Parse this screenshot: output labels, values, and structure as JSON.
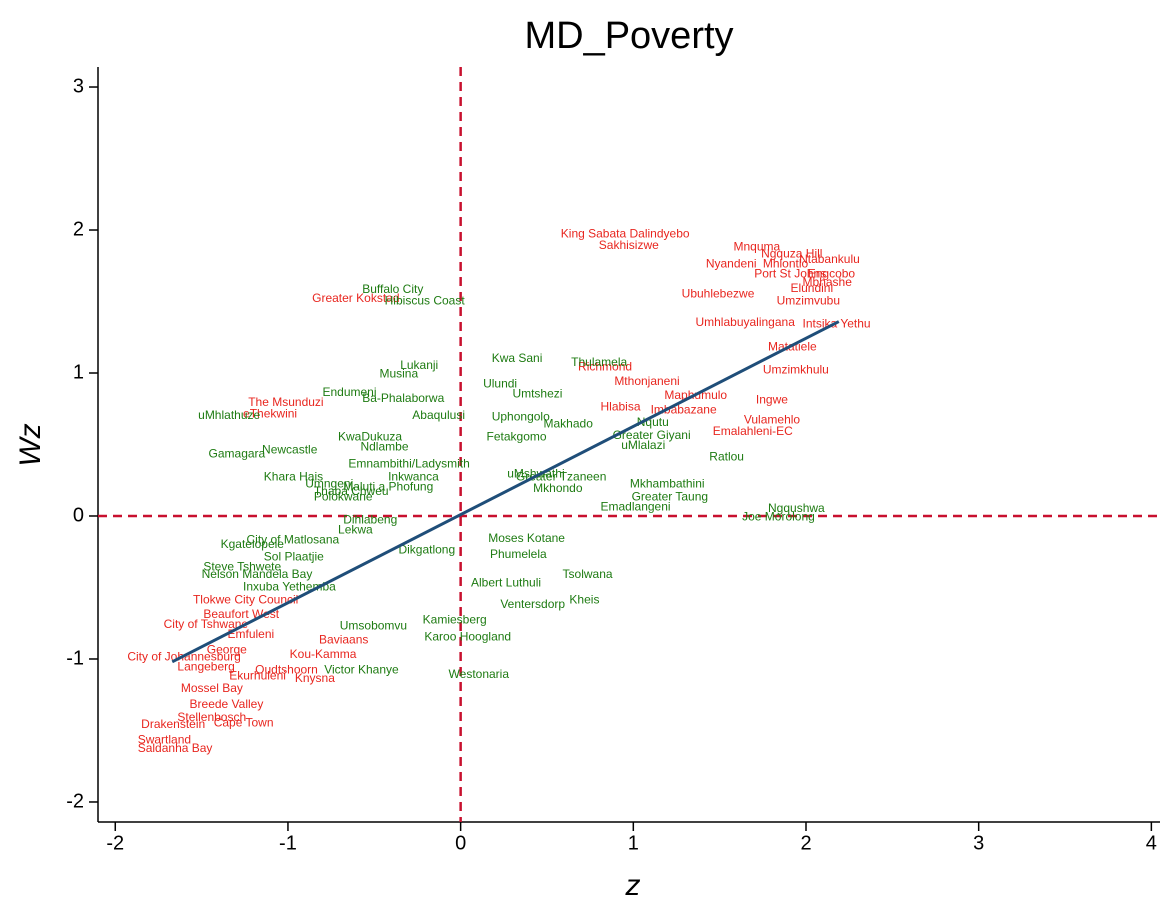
{
  "chart_data": {
    "type": "scatter",
    "title": "MD_Poverty",
    "x_label": "z",
    "y_label": "Wz",
    "xlim": [
      -2.1,
      4.05
    ],
    "ylim": [
      -2.14,
      3.14
    ],
    "xticks": [
      -2,
      -1,
      0,
      1,
      2,
      3,
      4
    ],
    "yticks": [
      -2,
      -1,
      0,
      1,
      2,
      3
    ],
    "reference_lines": {
      "color": "#c8102e",
      "x": 0,
      "y": 0
    },
    "fit_line": {
      "color": "#1f4e79",
      "x": [
        -1.67,
        2.19
      ],
      "y": [
        -1.02,
        1.36
      ]
    },
    "groups": [
      {
        "color": "#e8261f",
        "labels": [
          "King Sabata Dalindyebo",
          "Sakhisizwe",
          "Mnquma",
          "Ngquza Hill",
          "Ntabankulu",
          "Nyandeni",
          "Mhlontlo",
          "Port St Johns",
          "Engcobo",
          "Mbhashe",
          "Elundini",
          "Ubuhlebezwe",
          "Umzimvubu",
          "Greater Kokstad",
          "Umhlabuyalingana",
          "Intsika Yethu",
          "Matatiele",
          "Umzimkhulu",
          "Richmond",
          "Mthonjaneni",
          "Maphumulo",
          "Ingwe",
          "Hlabisa",
          "Imbabazane",
          "Vulamehlo",
          "Emalahleni-EC",
          "The Msunduzi",
          "eThekwini",
          "City of Tshwane",
          "City of Johannesburg",
          "Tlokwe City Council",
          "Beaufort West",
          "Emfuleni",
          "Baviaans",
          "George",
          "Langeberg",
          "Mossel Bay",
          "Breede Valley",
          "Stellenbosch",
          "Drakenstein",
          "Cape Town",
          "Swartland",
          "Saldanha Bay",
          "Knysna",
          "Oudtshoorn",
          "Ekurhuleni",
          "Kou-Kamma"
        ],
        "x": [
          0.58,
          0.8,
          1.58,
          1.74,
          1.96,
          1.42,
          1.75,
          1.7,
          2.01,
          1.98,
          1.91,
          1.28,
          1.83,
          -0.86,
          1.36,
          1.98,
          1.78,
          1.75,
          0.68,
          0.89,
          1.18,
          1.71,
          0.81,
          1.1,
          1.64,
          1.46,
          -1.23,
          -1.26,
          -1.72,
          -1.93,
          -1.55,
          -1.49,
          -1.35,
          -0.82,
          -1.47,
          -1.64,
          -1.62,
          -1.57,
          -1.64,
          -1.85,
          -1.43,
          -1.87,
          -1.87,
          -0.96,
          -1.19,
          -1.34,
          -0.99
        ],
        "y": [
          1.97,
          1.89,
          1.88,
          1.83,
          1.79,
          1.76,
          1.76,
          1.69,
          1.69,
          1.63,
          1.59,
          1.55,
          1.5,
          1.52,
          1.35,
          1.34,
          1.18,
          1.02,
          1.04,
          0.94,
          0.84,
          0.81,
          0.76,
          0.74,
          0.67,
          0.59,
          0.79,
          0.71,
          -0.76,
          -0.99,
          -0.59,
          -0.69,
          -0.83,
          -0.87,
          -0.94,
          -1.06,
          -1.21,
          -1.32,
          -1.41,
          -1.46,
          -1.45,
          -1.57,
          -1.63,
          -1.14,
          -1.08,
          -1.12,
          -0.97
        ]
      },
      {
        "color": "#1e7b12",
        "labels": [
          "Buffalo City",
          "Hibiscus Coast",
          "Kwa Sani",
          "Lukanji",
          "Musina",
          "Endumeni",
          "Ba-Phalaborwa",
          "Ulundi",
          "Umtshezi",
          "uMhlathuze",
          "Abaqulusi",
          "Uphongolo",
          "Makhado",
          "Nqutu",
          "Fetakgomo",
          "Greater Giyani",
          "uMlalazi",
          "KwaDukuza",
          "Ndlambe",
          "Newcastle",
          "Gamagara",
          "Emnambithi/Ladysmith",
          "Khara Hais",
          "Inkwanca",
          "Umngeni",
          "Maluti a Phofung",
          "Mkhondo",
          "Joe Morolong",
          "Ngqushwa",
          "Greater Taung",
          "Emadlangeni",
          "Mkhambathini",
          "uMshwathi",
          "Dihlabeng",
          "Lekwa",
          "Moses Kotane",
          "Ratlou",
          "Thulamela",
          "Phumelela",
          "Dikgatlong",
          "Tsolwana",
          "Albert Luthuli",
          "Kheis",
          "Ventersdorp",
          "Karoo Hoogland",
          "Kamiesberg",
          "Westonaria",
          "Victor Khanye",
          "Nelson Mandela Bay",
          "Steve Tshwete",
          "Kgatelopele",
          "City of Matlosana",
          "Sol Plaatjie",
          "Inxuba Yethemba",
          "Polokwane",
          "Thaba Chweu",
          "Umsobomvu",
          "Greater Tzaneen"
        ],
        "x": [
          -0.57,
          -0.44,
          0.18,
          -0.35,
          -0.47,
          -0.8,
          -0.57,
          0.13,
          0.3,
          -1.52,
          -0.28,
          0.18,
          0.48,
          1.02,
          0.15,
          0.88,
          0.93,
          -0.71,
          -0.58,
          -1.15,
          -1.46,
          -0.65,
          -1.14,
          -0.42,
          -0.9,
          -0.68,
          0.42,
          1.63,
          1.78,
          0.99,
          0.81,
          0.98,
          0.27,
          -0.68,
          -0.71,
          0.16,
          1.44,
          0.64,
          0.17,
          -0.36,
          0.59,
          0.06,
          0.63,
          0.23,
          -0.21,
          -0.22,
          -0.07,
          -0.79,
          -1.5,
          -1.49,
          -1.39,
          -1.24,
          -1.14,
          -1.26,
          -0.85,
          -0.85,
          -0.7,
          0.32
        ],
        "y": [
          1.58,
          1.5,
          1.1,
          1.05,
          0.99,
          0.86,
          0.82,
          0.92,
          0.85,
          0.7,
          0.7,
          0.69,
          0.64,
          0.65,
          0.55,
          0.56,
          0.49,
          0.55,
          0.48,
          0.46,
          0.43,
          0.36,
          0.27,
          0.27,
          0.22,
          0.2,
          0.19,
          -0.01,
          0.05,
          0.13,
          0.06,
          0.22,
          0.29,
          -0.03,
          -0.1,
          -0.16,
          0.41,
          1.07,
          -0.27,
          -0.24,
          -0.41,
          -0.47,
          -0.59,
          -0.62,
          -0.85,
          -0.73,
          -1.11,
          -1.08,
          -0.41,
          -0.36,
          -0.2,
          -0.17,
          -0.29,
          -0.5,
          0.13,
          0.17,
          -0.77,
          0.27
        ]
      }
    ]
  }
}
